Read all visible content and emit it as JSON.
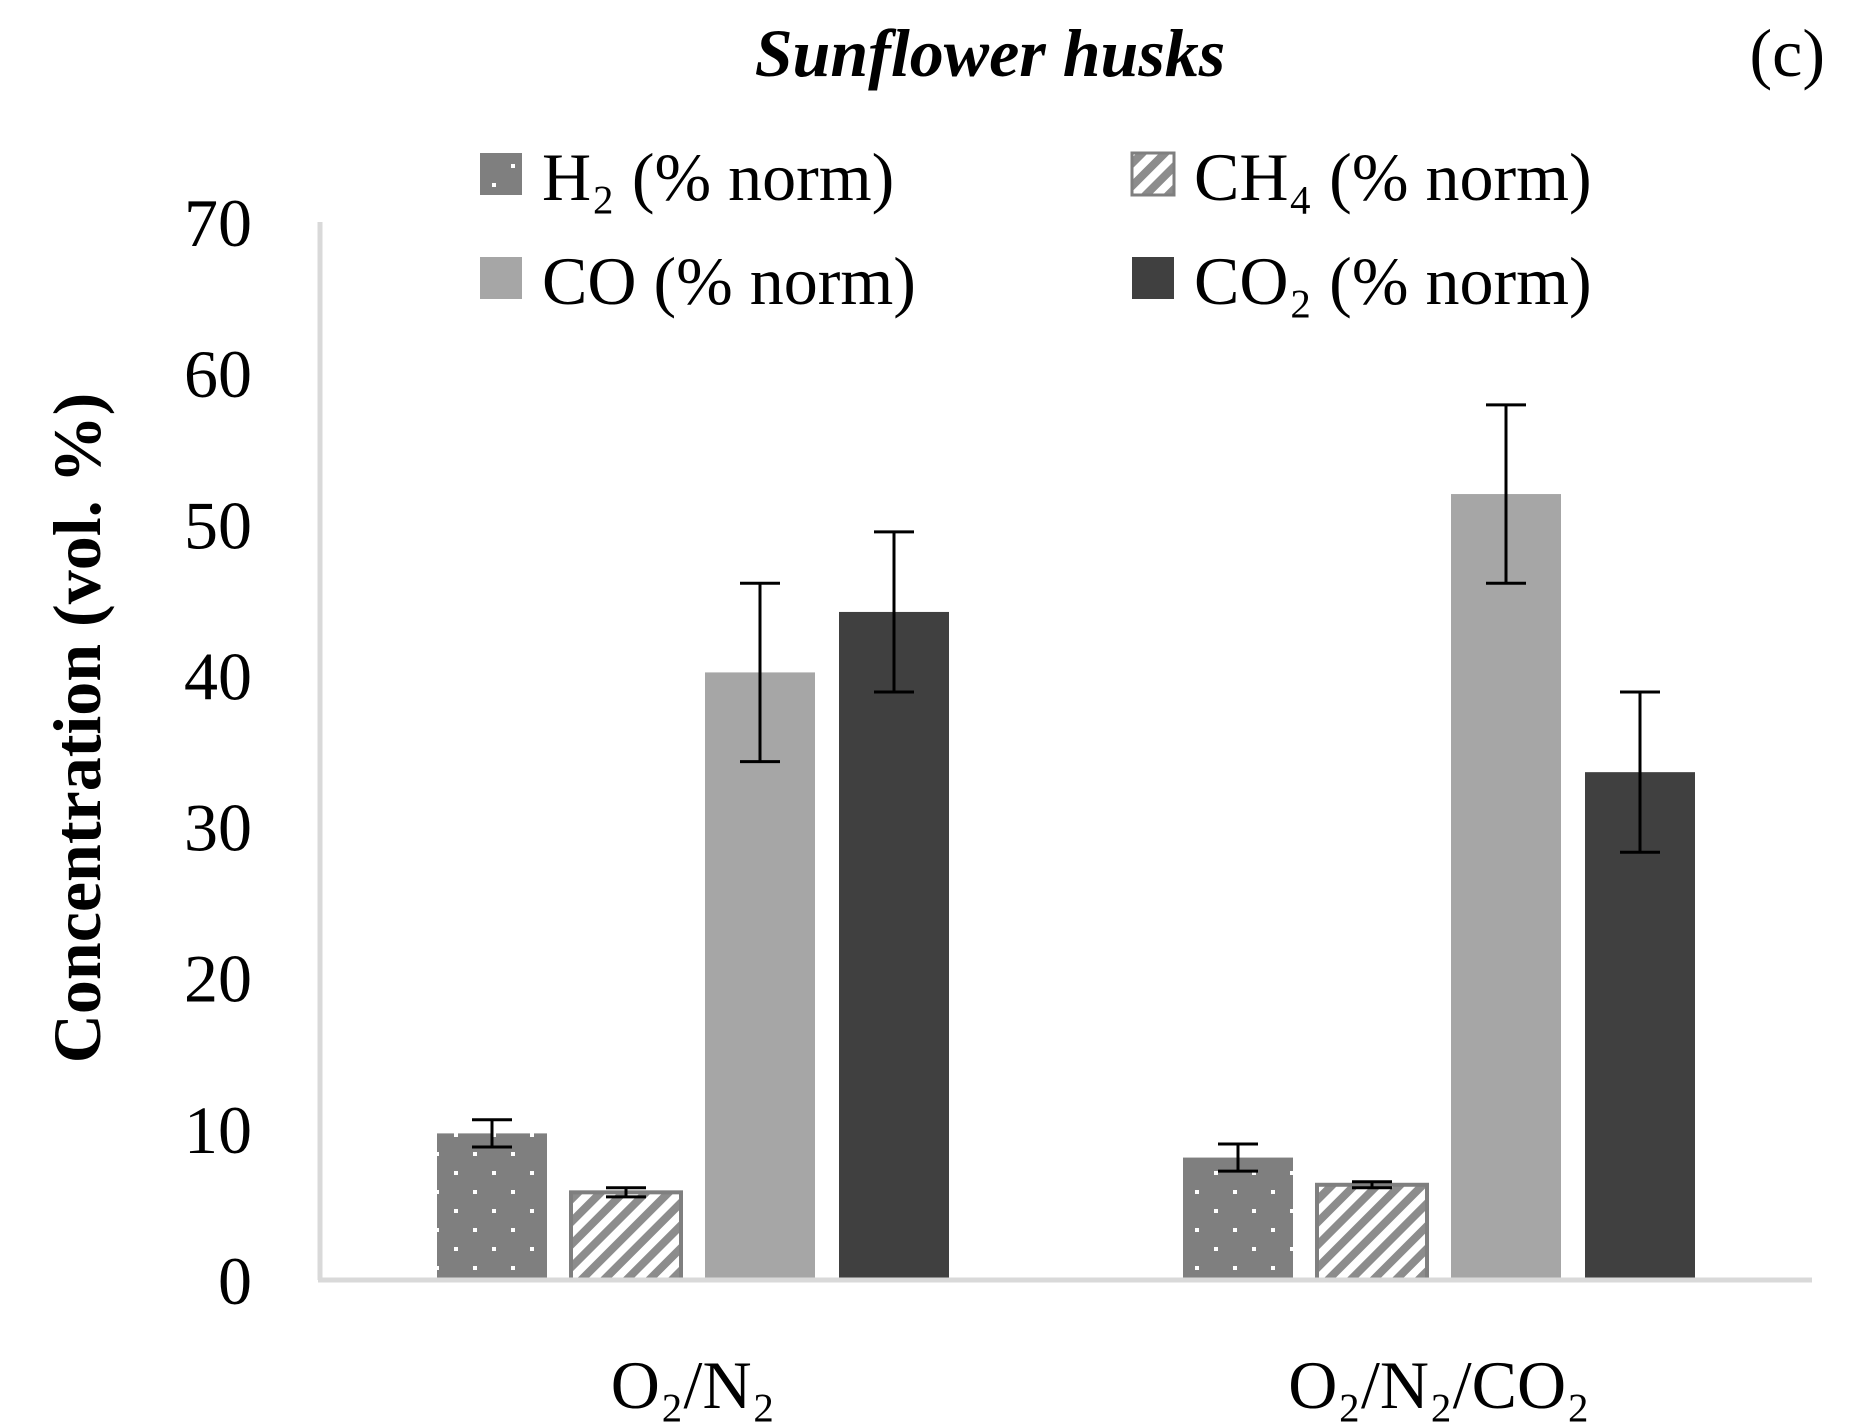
{
  "chart_data": {
    "type": "bar",
    "title": "Sunflower husks",
    "panel_label": "(c)",
    "ylabel": "Concentration (vol. %)",
    "xlabel": "",
    "ylim": [
      0,
      70
    ],
    "yticks": [
      0,
      10,
      20,
      30,
      40,
      50,
      60,
      70
    ],
    "grid": false,
    "legend_position": "top",
    "categories": [
      "O₂/N₂",
      "O₂/N₂/CO₂"
    ],
    "series": [
      {
        "name": "H₂ (% norm)",
        "values": [
          9.7,
          8.1
        ],
        "errors": [
          0.9,
          0.9
        ],
        "pattern": "dots",
        "color": "#7f7f7f"
      },
      {
        "name": "CH₄ (% norm)",
        "values": [
          5.8,
          6.3
        ],
        "errors": [
          0.3,
          0.2
        ],
        "pattern": "stripes",
        "color": "#7f7f7f"
      },
      {
        "name": "CO (% norm)",
        "values": [
          40.2,
          52.0
        ],
        "errors": [
          5.9,
          5.9
        ],
        "pattern": "solid",
        "color": "#a6a6a6"
      },
      {
        "name": "CO₂ (% norm)",
        "values": [
          44.2,
          33.6
        ],
        "errors": [
          5.3,
          5.3
        ],
        "pattern": "solid",
        "color": "#404040"
      }
    ]
  }
}
